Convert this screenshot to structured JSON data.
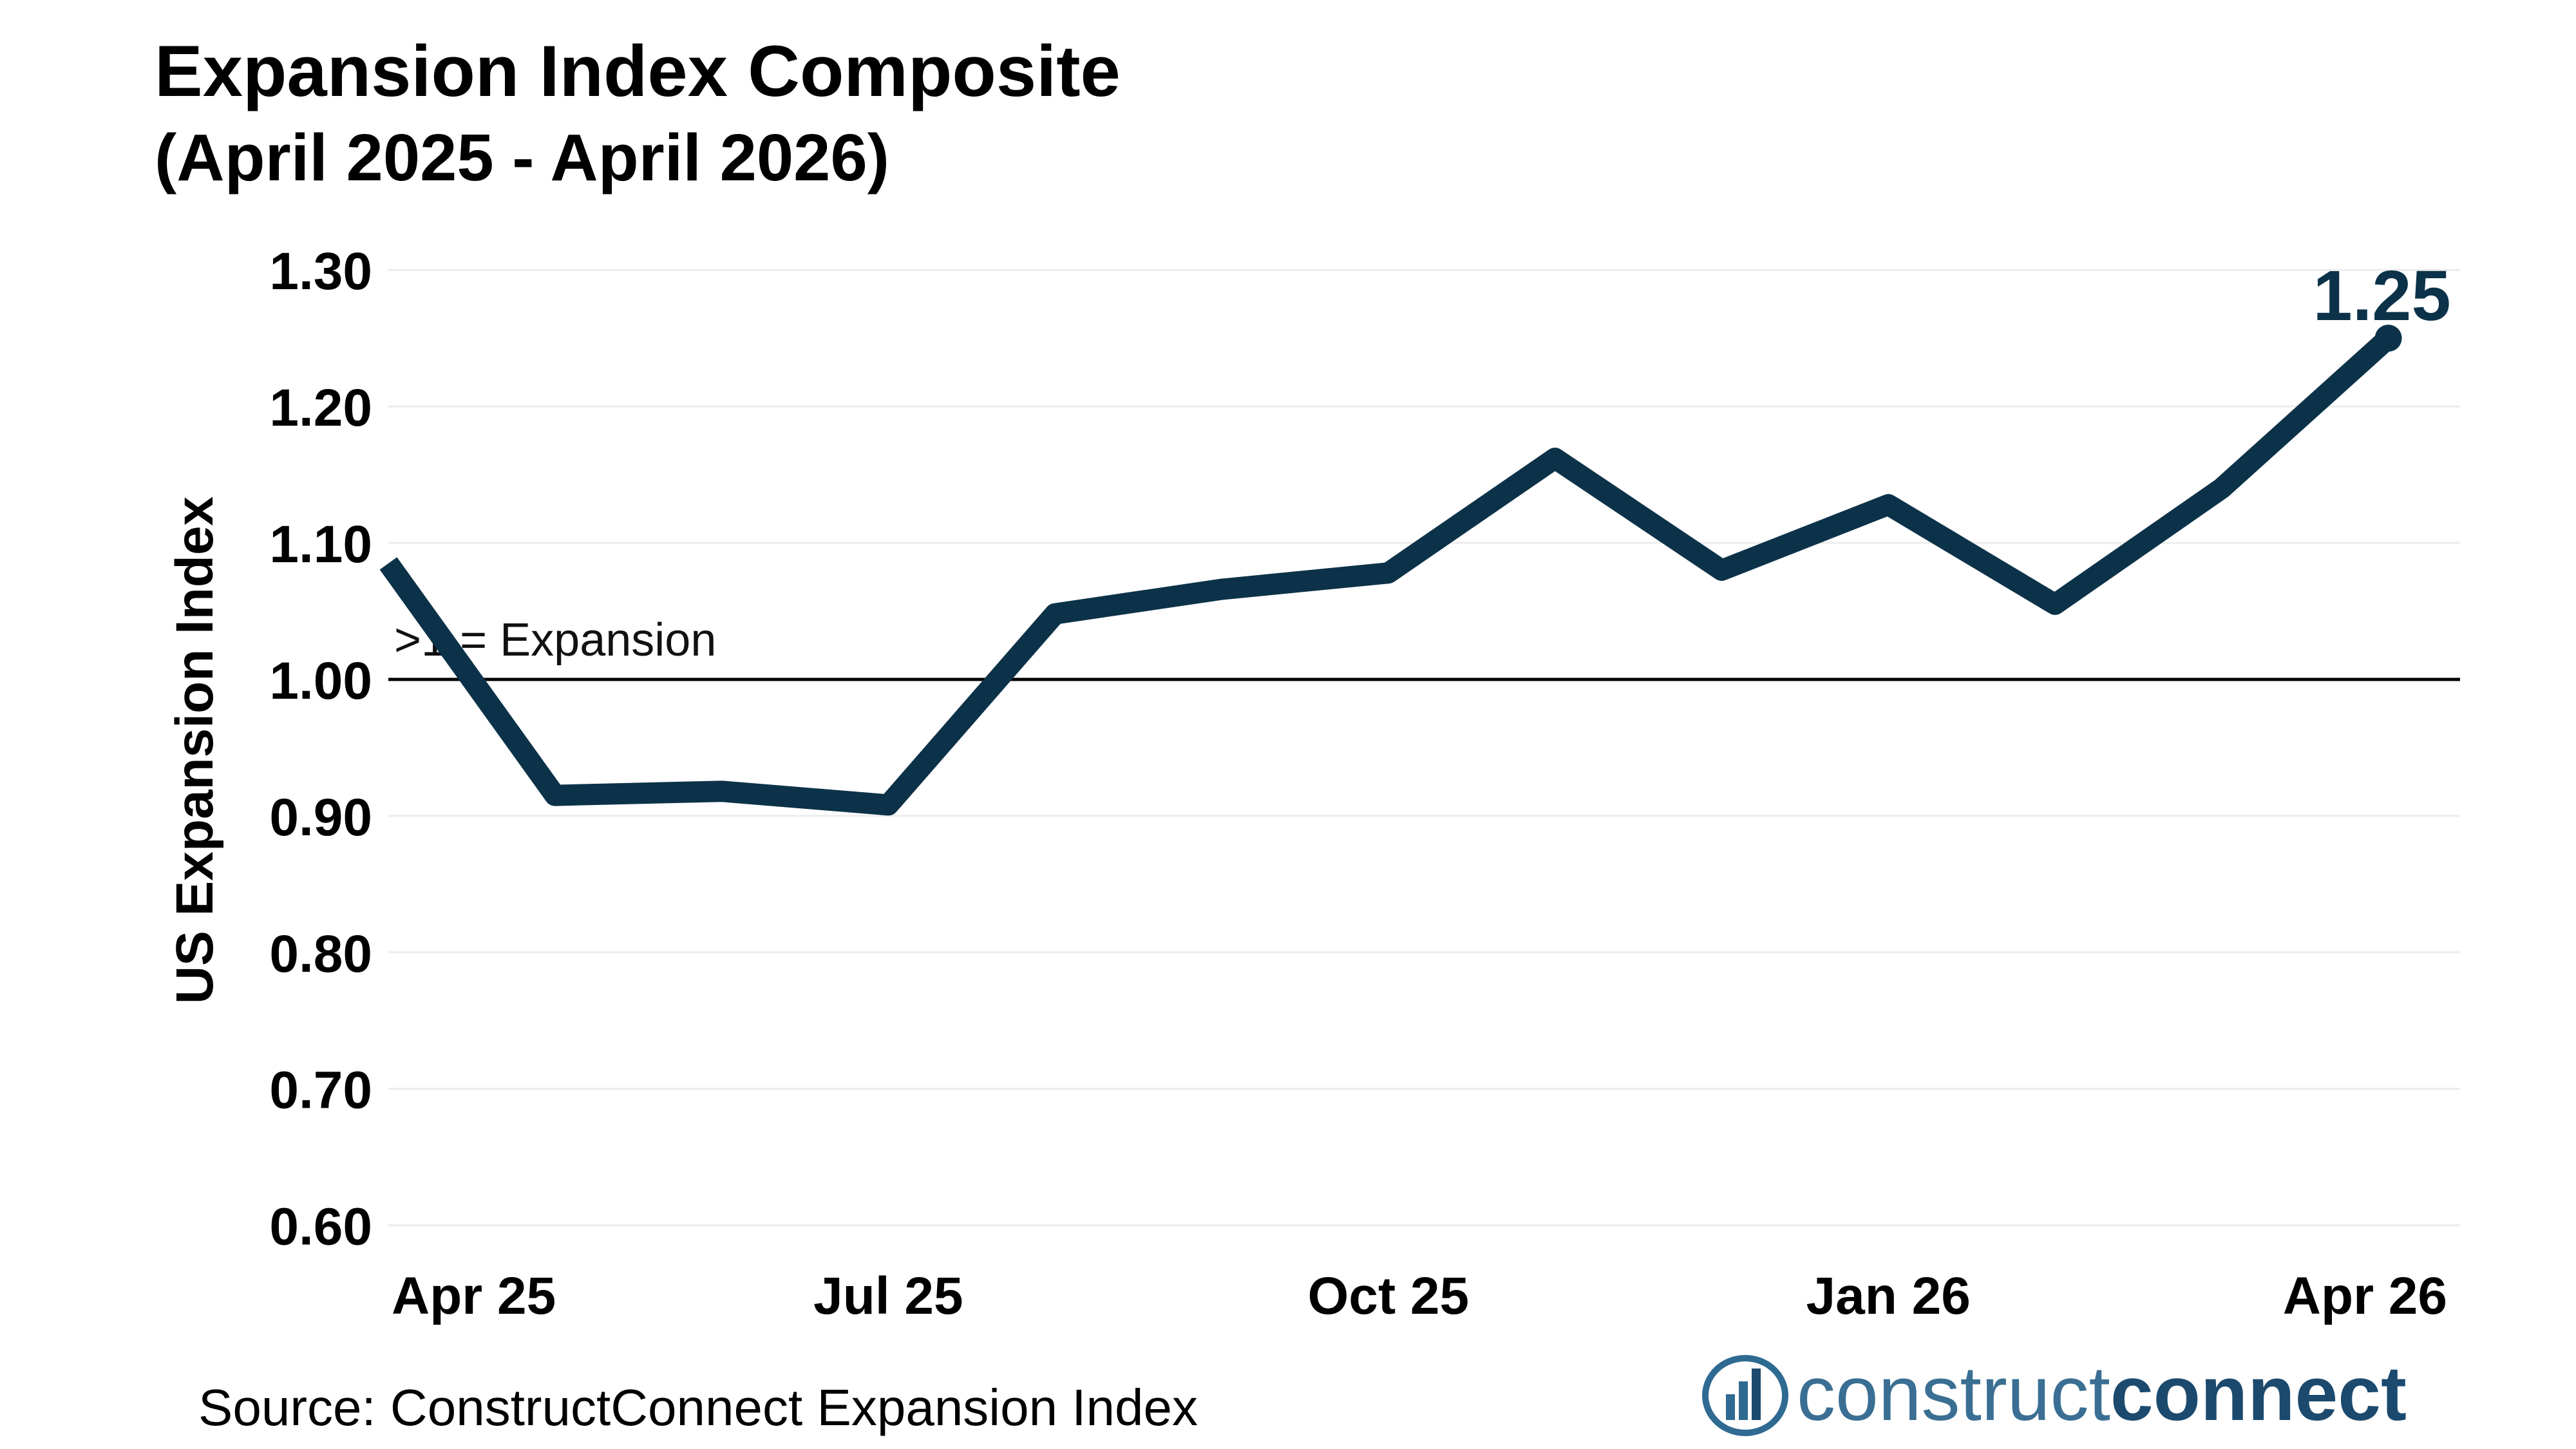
{
  "chart_data": {
    "type": "line",
    "title": "Expansion Index Composite",
    "subtitle": "(April 2025 - April 2026)",
    "ylabel": "US Expansion Index",
    "xlabel": "",
    "ylim": [
      0.58,
      1.31
    ],
    "yticks": [
      0.6,
      0.7,
      0.8,
      0.9,
      1.0,
      1.1,
      1.2,
      1.3
    ],
    "ytick_labels": [
      "0.60",
      "0.70",
      "0.80",
      "0.90",
      "1.00",
      "1.10",
      "1.20",
      "1.30"
    ],
    "x": [
      "Apr 25",
      "May 25",
      "Jun 25",
      "Jul 25",
      "Aug 25",
      "Sep 25",
      "Oct 25",
      "Nov 25",
      "Dec 25",
      "Jan 26",
      "Feb 26",
      "Mar 26",
      "Apr 26"
    ],
    "xtick_labels": [
      "Apr 25",
      "Jul 25",
      "Oct 25",
      "Jan 26",
      "Apr 26"
    ],
    "series": [
      {
        "values": [
          1.085,
          0.915,
          0.918,
          0.908,
          1.048,
          1.066,
          1.078,
          1.162,
          1.08,
          1.128,
          1.055,
          1.14,
          1.25
        ],
        "color": "#0c3249"
      }
    ],
    "reference_line": {
      "y": 1.0,
      "label": ">1 = Expansion",
      "color": "#000000"
    },
    "end_label": "1.25",
    "grid": true,
    "grid_color": "#ececec",
    "legend": "none"
  },
  "footer": {
    "source": "Source: ConstructConnect Expansion Index",
    "logo_text_light": "construct",
    "logo_text_bold": "connect",
    "logo_color_light": "#3a6f93",
    "logo_color_bold": "#1c4a6e"
  }
}
